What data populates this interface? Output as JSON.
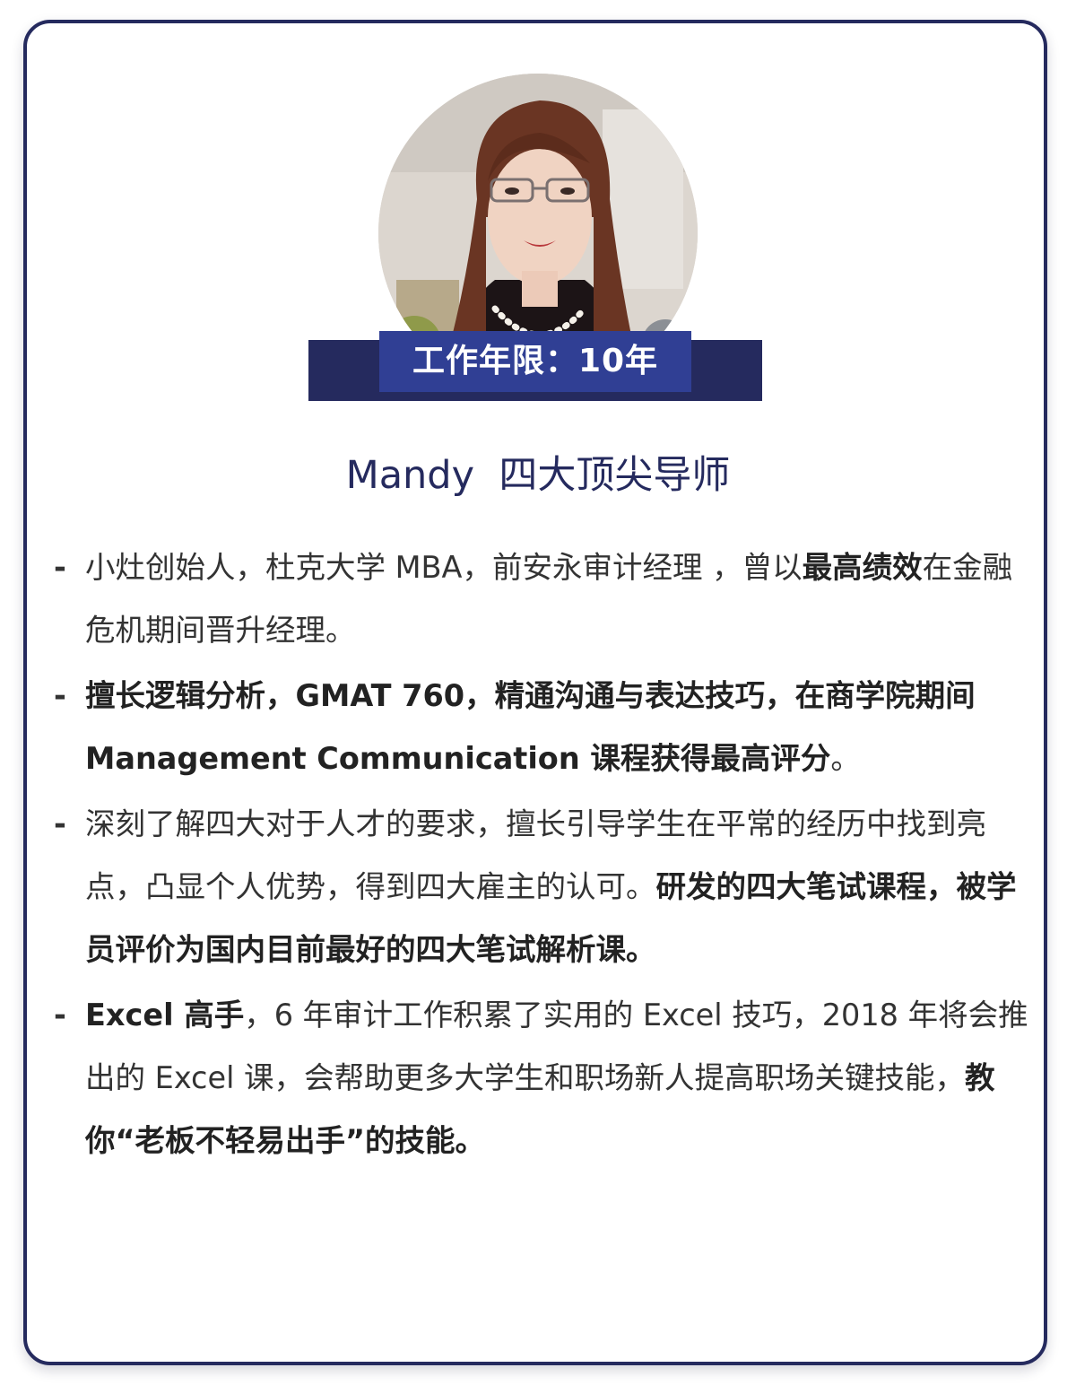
{
  "profile": {
    "photo_alt": "Mandy portrait",
    "experience_badge": "工作年限：10年",
    "name_title": "Mandy  四大顶尖导师"
  },
  "bullets": [
    {
      "dash": "-",
      "parts": [
        {
          "text": "小灶创始人，杜克大学 MBA，前安永审计经理 ，曾以",
          "bold": false
        },
        {
          "text": "最高绩效",
          "bold": true
        },
        {
          "text": "在金融危机期间晋升经理。",
          "bold": false
        }
      ]
    },
    {
      "dash": "-",
      "parts": [
        {
          "text": "擅长逻辑分析，GMAT 760，精通沟通与表达技巧，在商学院期间 Management Communication 课程获得最高评分",
          "bold": true
        },
        {
          "text": "。",
          "bold": false
        }
      ]
    },
    {
      "dash": "-",
      "parts": [
        {
          "text": "深刻了解四大对于人才的要求，擅长引导学生在平常的经历中找到亮点，凸显个人优势，得到四大雇主的认可。",
          "bold": false
        },
        {
          "text": "研发的四大笔试课程，被学员评价为国内目前最好的四大笔试解析课。",
          "bold": true
        }
      ]
    },
    {
      "dash": "-",
      "parts": [
        {
          "text": " Excel 高手",
          "bold": true
        },
        {
          "text": "，6 年审计工作积累了实用的 Excel 技巧，2018 年将会推出的 Excel 课，会帮助更多大学生和职场新人提高职场关键技能，",
          "bold": false
        },
        {
          "text": "教你“老板不轻易出手”的技能。",
          "bold": true
        }
      ]
    }
  ],
  "colors": {
    "navy": "#252a5e",
    "banner_blue": "#303f94",
    "text": "#333333"
  }
}
